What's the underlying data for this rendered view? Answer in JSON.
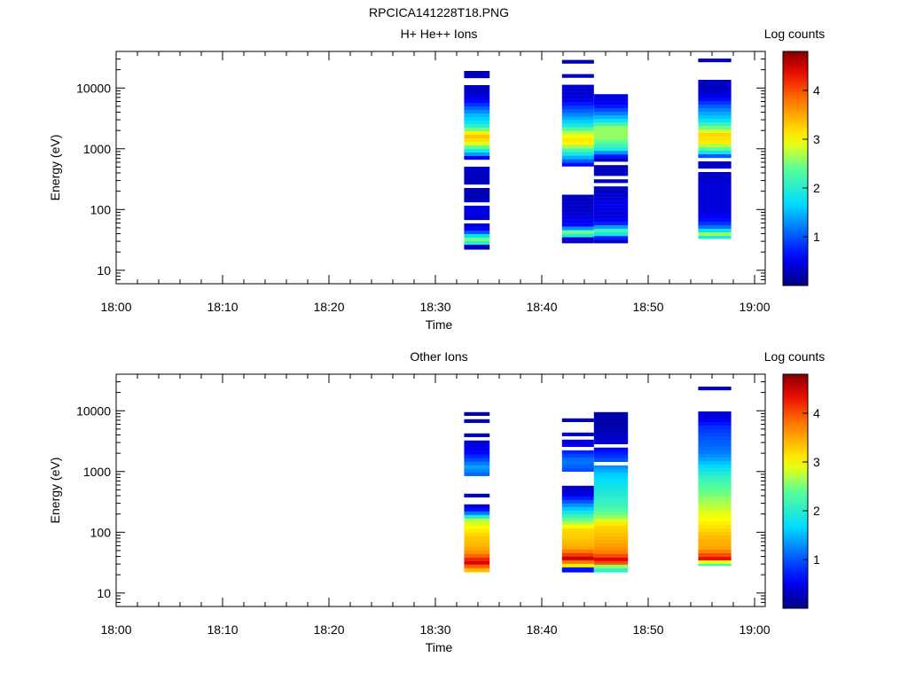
{
  "figure_title": "RPCICA141228T18.PNG",
  "chart_data": [
    {
      "type": "heatmap",
      "title": "H+ He++ Ions",
      "xlabel": "Time",
      "ylabel": "Energy (eV)",
      "x_ticks": [
        "18:00",
        "18:10",
        "18:20",
        "18:30",
        "18:40",
        "18:50",
        "19:00"
      ],
      "x_range_minutes": [
        0,
        61
      ],
      "y_scale": "log",
      "y_range": [
        6,
        40000
      ],
      "y_ticks": [
        "10",
        "100",
        "1000",
        "10000"
      ],
      "colorbar": {
        "label": "Log counts",
        "range": [
          0,
          4.8
        ],
        "ticks": [
          "1",
          "2",
          "3",
          "4"
        ]
      },
      "blocks": [
        {
          "t_start": 32.7,
          "t_end": 35.1,
          "e_min": 22,
          "e_max": 25000,
          "profile": [
            [
              22,
              0.3
            ],
            [
              25,
              0.3
            ],
            [
              27,
              1.9
            ],
            [
              32,
              2.5
            ],
            [
              36,
              1.9
            ],
            [
              42,
              1.0
            ],
            [
              50,
              0.4
            ],
            [
              65,
              0.3
            ],
            [
              100,
              0.5
            ],
            [
              140,
              0.3
            ],
            [
              200,
              0.2
            ],
            [
              400,
              0.3
            ],
            [
              700,
              0.4
            ],
            [
              800,
              1.3
            ],
            [
              1000,
              2.2
            ],
            [
              1300,
              3.1
            ],
            [
              1700,
              3.4
            ],
            [
              2000,
              2.6
            ],
            [
              2600,
              1.8
            ],
            [
              3600,
              1.5
            ],
            [
              4800,
              1.0
            ],
            [
              6500,
              0.5
            ],
            [
              9000,
              0.3
            ],
            [
              25000,
              0.2
            ]
          ],
          "gaps": [
            [
              52,
              55
            ],
            [
              62,
              66
            ],
            [
              115,
              125
            ],
            [
              225,
              245
            ],
            [
              300,
              310
            ],
            [
              340,
              355
            ],
            [
              420,
              450
            ],
            [
              540,
              560
            ],
            [
              620,
              650
            ],
            [
              710,
              740
            ],
            [
              9500,
              10000
            ],
            [
              11200,
              12000
            ],
            [
              13500,
              14500
            ],
            [
              16500,
              17500
            ],
            [
              19500,
              21000
            ],
            [
              22500,
              23500
            ]
          ]
        },
        {
          "t_start": 41.9,
          "t_end": 44.9,
          "e_min": 28,
          "e_max": 29000,
          "profile": [
            [
              28,
              0.3
            ],
            [
              33,
              0.4
            ],
            [
              36,
              1.8
            ],
            [
              42,
              2.6
            ],
            [
              48,
              1.4
            ],
            [
              55,
              0.6
            ],
            [
              80,
              0.4
            ],
            [
              120,
              0.3
            ],
            [
              180,
              0.3
            ],
            [
              500,
              0.3
            ],
            [
              600,
              0.9
            ],
            [
              700,
              1.4
            ],
            [
              1000,
              2.4
            ],
            [
              1300,
              3.2
            ],
            [
              1800,
              2.8
            ],
            [
              2500,
              1.8
            ],
            [
              3500,
              1.3
            ],
            [
              5000,
              0.8
            ],
            [
              7000,
              0.4
            ],
            [
              29000,
              0.2
            ]
          ],
          "gaps": [
            [
              60,
              63
            ],
            [
              70,
              73
            ],
            [
              110,
              114
            ],
            [
              185,
              255
            ],
            [
              275,
              490
            ],
            [
              8400,
              8800
            ],
            [
              10000,
              10500
            ],
            [
              11500,
              12200
            ],
            [
              13000,
              15000
            ],
            [
              17500,
              27000
            ]
          ]
        },
        {
          "t_start": 44.9,
          "t_end": 48.1,
          "e_min": 28,
          "e_max": 15500,
          "profile": [
            [
              28,
              0.3
            ],
            [
              33,
              0.4
            ],
            [
              38,
              1.8
            ],
            [
              45,
              2.2
            ],
            [
              52,
              1.3
            ],
            [
              60,
              0.6
            ],
            [
              80,
              0.4
            ],
            [
              120,
              0.5
            ],
            [
              200,
              0.3
            ],
            [
              300,
              0.3
            ],
            [
              700,
              0.3
            ],
            [
              800,
              1.0
            ],
            [
              1000,
              2.0
            ],
            [
              1500,
              2.6
            ],
            [
              2200,
              2.6
            ],
            [
              3000,
              1.7
            ],
            [
              4200,
              1.0
            ],
            [
              5500,
              0.5
            ],
            [
              15500,
              0.2
            ]
          ],
          "gaps": [
            [
              105,
              110
            ],
            [
              180,
              186
            ],
            [
              225,
              260
            ],
            [
              310,
              340
            ],
            [
              400,
              420
            ],
            [
              460,
              490
            ],
            [
              560,
              600
            ],
            [
              720,
              730
            ],
            [
              7800,
              8800
            ],
            [
              9500,
              14500
            ]
          ]
        },
        {
          "t_start": 54.7,
          "t_end": 57.8,
          "e_min": 33,
          "e_max": 40000,
          "profile": [
            [
              33,
              1.7
            ],
            [
              40,
              2.7
            ],
            [
              46,
              1.6
            ],
            [
              55,
              0.9
            ],
            [
              70,
              0.6
            ],
            [
              100,
              0.4
            ],
            [
              150,
              0.4
            ],
            [
              250,
              0.4
            ],
            [
              400,
              0.3
            ],
            [
              700,
              0.3
            ],
            [
              800,
              1.5
            ],
            [
              1000,
              2.4
            ],
            [
              1300,
              3.1
            ],
            [
              1700,
              3.2
            ],
            [
              2200,
              2.5
            ],
            [
              3000,
              1.7
            ],
            [
              4200,
              1.3
            ],
            [
              5500,
              0.9
            ],
            [
              7000,
              0.5
            ],
            [
              9500,
              0.3
            ],
            [
              40000,
              0.2
            ]
          ],
          "gaps": [
            [
              440,
              480
            ],
            [
              650,
              700
            ],
            [
              760,
              800
            ],
            [
              11500,
              12500
            ],
            [
              14500,
              25000
            ],
            [
              31000,
              38500
            ]
          ]
        }
      ]
    },
    {
      "type": "heatmap",
      "title": "Other Ions",
      "xlabel": "Time",
      "ylabel": "Energy (eV)",
      "x_ticks": [
        "18:00",
        "18:10",
        "18:20",
        "18:30",
        "18:40",
        "18:50",
        "19:00"
      ],
      "x_range_minutes": [
        0,
        61
      ],
      "y_scale": "log",
      "y_range": [
        6,
        40000
      ],
      "y_ticks": [
        "10",
        "100",
        "1000",
        "10000"
      ],
      "colorbar": {
        "label": "Log counts",
        "range": [
          0,
          4.8
        ],
        "ticks": [
          "1",
          "2",
          "3",
          "4"
        ]
      },
      "blocks": [
        {
          "t_start": 32.7,
          "t_end": 35.1,
          "e_min": 22,
          "e_max": 9500,
          "profile": [
            [
              22,
              3.2
            ],
            [
              26,
              3.6
            ],
            [
              30,
              4.5
            ],
            [
              36,
              4.2
            ],
            [
              44,
              3.7
            ],
            [
              60,
              3.4
            ],
            [
              80,
              3.3
            ],
            [
              120,
              3.0
            ],
            [
              160,
              2.7
            ],
            [
              220,
              0.8
            ],
            [
              280,
              0.3
            ],
            [
              400,
              0.3
            ],
            [
              800,
              1.0
            ],
            [
              1200,
              1.4
            ],
            [
              1600,
              0.9
            ],
            [
              2200,
              0.5
            ],
            [
              3000,
              0.4
            ],
            [
              4500,
              0.3
            ],
            [
              9500,
              0.2
            ]
          ],
          "gaps": [
            [
              300,
              400
            ],
            [
              420,
              800
            ],
            [
              3200,
              3700
            ],
            [
              4300,
              6500
            ],
            [
              7500,
              8200
            ]
          ]
        },
        {
          "t_start": 41.9,
          "t_end": 44.9,
          "e_min": 22,
          "e_max": 7500,
          "profile": [
            [
              22,
              0.6
            ],
            [
              26,
              0.7
            ],
            [
              28,
              3.0
            ],
            [
              32,
              3.7
            ],
            [
              36,
              4.6
            ],
            [
              44,
              4.0
            ],
            [
              55,
              3.5
            ],
            [
              80,
              3.3
            ],
            [
              110,
              3.2
            ],
            [
              150,
              2.6
            ],
            [
              200,
              2.0
            ],
            [
              280,
              1.3
            ],
            [
              400,
              0.5
            ],
            [
              550,
              0.3
            ],
            [
              1100,
              1.0
            ],
            [
              1500,
              1.2
            ],
            [
              2000,
              0.8
            ],
            [
              3000,
              0.4
            ],
            [
              7500,
              0.2
            ]
          ],
          "gaps": [
            [
              560,
              950
            ],
            [
              2100,
              2600
            ],
            [
              3400,
              3700
            ],
            [
              4500,
              6600
            ]
          ]
        },
        {
          "t_start": 44.9,
          "t_end": 48.1,
          "e_min": 22,
          "e_max": 9500,
          "profile": [
            [
              22,
              1.9
            ],
            [
              27,
              2.4
            ],
            [
              30,
              3.8
            ],
            [
              35,
              4.5
            ],
            [
              44,
              3.8
            ],
            [
              55,
              3.6
            ],
            [
              80,
              3.4
            ],
            [
              130,
              3.2
            ],
            [
              180,
              2.6
            ],
            [
              250,
              2.2
            ],
            [
              400,
              2.0
            ],
            [
              600,
              1.8
            ],
            [
              900,
              1.6
            ],
            [
              1300,
              1.2
            ],
            [
              1800,
              0.8
            ],
            [
              3000,
              0.4
            ],
            [
              5000,
              0.2
            ],
            [
              9500,
              0.2
            ]
          ],
          "gaps": [
            [
              1300,
              1400
            ],
            [
              1900,
              2000
            ],
            [
              2600,
              2900
            ]
          ]
        },
        {
          "t_start": 54.7,
          "t_end": 57.8,
          "e_min": 28,
          "e_max": 25000,
          "profile": [
            [
              28,
              2.2
            ],
            [
              33,
              3.0
            ],
            [
              36,
              4.4
            ],
            [
              44,
              3.9
            ],
            [
              55,
              3.5
            ],
            [
              80,
              3.4
            ],
            [
              130,
              3.1
            ],
            [
              200,
              2.9
            ],
            [
              350,
              2.6
            ],
            [
              600,
              2.3
            ],
            [
              900,
              2.0
            ],
            [
              1300,
              1.6
            ],
            [
              2000,
              1.2
            ],
            [
              3500,
              1.0
            ],
            [
              5500,
              0.8
            ],
            [
              8000,
              0.4
            ],
            [
              25000,
              0.2
            ]
          ],
          "gaps": [
            [
              2100,
              2300
            ],
            [
              2500,
              2700
            ],
            [
              7000,
              7600
            ],
            [
              9200,
              23000
            ]
          ]
        }
      ]
    }
  ]
}
